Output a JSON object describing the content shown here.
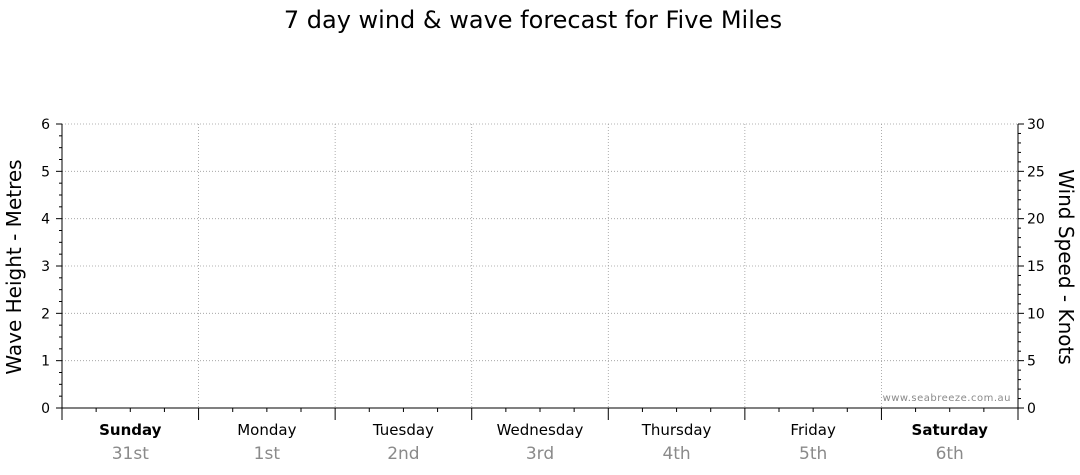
{
  "chart_data": {
    "type": "line",
    "title": "7 day wind & wave forecast for Five Miles",
    "ylabel_left": "Wave Height - Metres",
    "ylabel_right": "Wind Speed - Knots",
    "ylim_left": [
      0,
      6
    ],
    "ylim_right": [
      0,
      30
    ],
    "yticks_left": [
      "0",
      "1",
      "2",
      "3",
      "4",
      "5",
      "6"
    ],
    "yticks_right": [
      "0",
      "5",
      "10",
      "15",
      "20",
      "25",
      "30"
    ],
    "days": [
      {
        "name": "Sunday",
        "date": "31st",
        "bold": true
      },
      {
        "name": "Monday",
        "date": "1st",
        "bold": false
      },
      {
        "name": "Tuesday",
        "date": "2nd",
        "bold": false
      },
      {
        "name": "Wednesday",
        "date": "3rd",
        "bold": false
      },
      {
        "name": "Thursday",
        "date": "4th",
        "bold": false
      },
      {
        "name": "Friday",
        "date": "5th",
        "bold": false
      },
      {
        "name": "Saturday",
        "date": "6th",
        "bold": true
      }
    ],
    "grid": true,
    "series": [],
    "watermark": "www.seabreeze.com.au"
  }
}
